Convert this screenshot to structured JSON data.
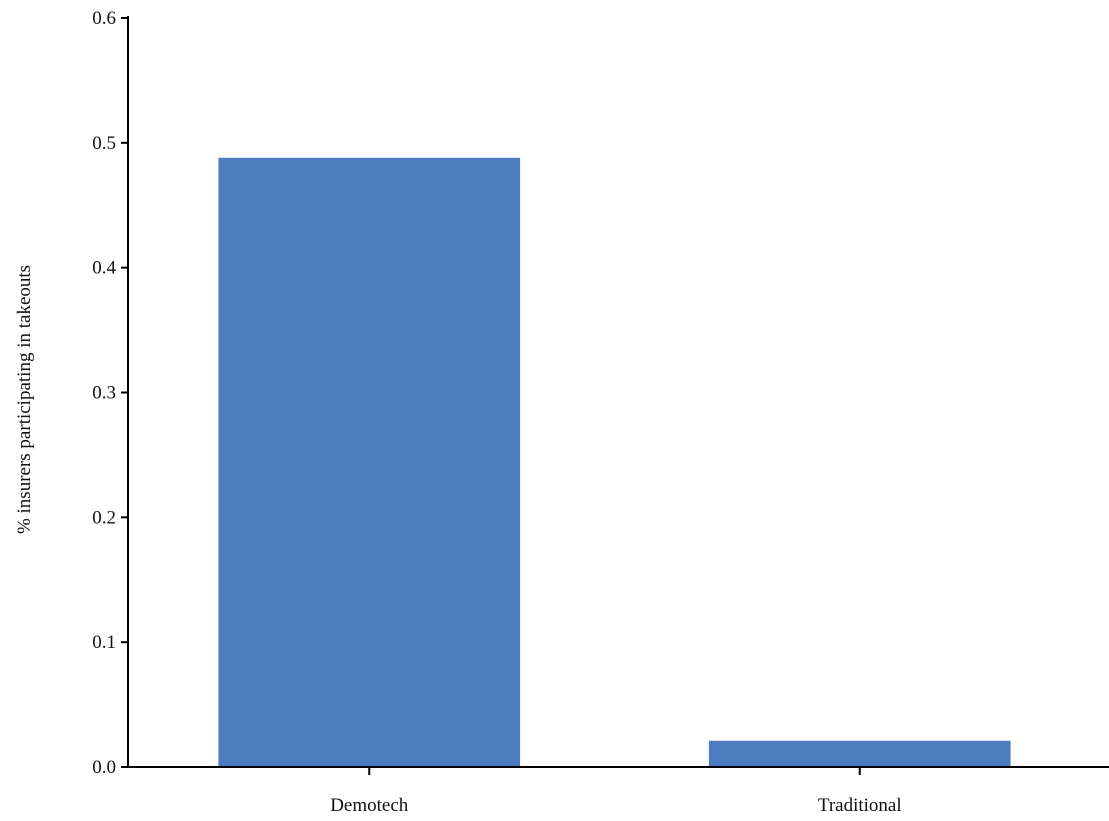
{
  "chart_data": {
    "type": "bar",
    "title": "",
    "xlabel": "",
    "ylabel": "% insurers participating in takeouts",
    "categories": [
      "Demotech",
      "Traditional"
    ],
    "values": [
      0.488,
      0.021
    ],
    "ylim": [
      0,
      0.6
    ],
    "yticks": [
      "0.0",
      "0.1",
      "0.2",
      "0.3",
      "0.4",
      "0.5",
      "0.6"
    ],
    "grid": false,
    "legend": "none",
    "bar_color": "#4a7cbf",
    "axis_color": "#000000"
  }
}
